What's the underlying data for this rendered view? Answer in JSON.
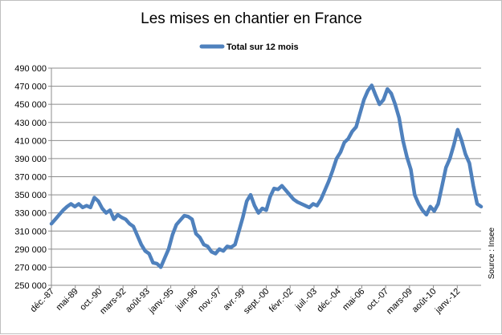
{
  "chart_data": {
    "type": "line",
    "title": "Les mises en chantier en France",
    "legend_position": "top",
    "source": "Source : Insee",
    "grid": true,
    "ylim": [
      250000,
      490000
    ],
    "y_ticks": [
      "250 000",
      "270 000",
      "290 000",
      "310 000",
      "330 000",
      "350 000",
      "370 000",
      "390 000",
      "410 000",
      "430 000",
      "450 000",
      "470 000",
      "490 000"
    ],
    "x_ticks": [
      "déc.-87",
      "mai-89",
      "oct.-90",
      "mars-92",
      "août-93",
      "janv.-95",
      "juin-96",
      "nov.-97",
      "avr.-99",
      "sept.-00",
      "févr.-02",
      "juil.-03",
      "déc.-04",
      "mai-06",
      "oct.-07",
      "mars-09",
      "août-10",
      "janv.-12"
    ],
    "series": [
      {
        "name": "Total sur 12 mois",
        "color": "#4f81bd",
        "values": [
          318000,
          323000,
          328000,
          333000,
          337000,
          340000,
          337000,
          340000,
          336000,
          338000,
          336000,
          347000,
          343000,
          335000,
          330000,
          333000,
          323000,
          328000,
          325000,
          323000,
          318000,
          315000,
          305000,
          295000,
          288000,
          285000,
          275000,
          274000,
          270000,
          280000,
          290000,
          306000,
          317000,
          322000,
          327000,
          326000,
          323000,
          307000,
          303000,
          295000,
          293000,
          287000,
          285000,
          290000,
          288000,
          293000,
          292000,
          295000,
          310000,
          325000,
          343000,
          350000,
          338000,
          330000,
          335000,
          333000,
          348000,
          357000,
          356000,
          360000,
          355000,
          350000,
          345000,
          342000,
          340000,
          338000,
          336000,
          340000,
          338000,
          345000,
          355000,
          365000,
          377000,
          390000,
          397000,
          408000,
          412000,
          420000,
          425000,
          440000,
          455000,
          465000,
          471000,
          460000,
          450000,
          455000,
          467000,
          462000,
          450000,
          435000,
          410000,
          392000,
          378000,
          350000,
          340000,
          333000,
          328000,
          337000,
          332000,
          340000,
          360000,
          380000,
          390000,
          405000,
          422000,
          410000,
          395000,
          385000,
          360000,
          340000,
          337000
        ]
      }
    ]
  }
}
